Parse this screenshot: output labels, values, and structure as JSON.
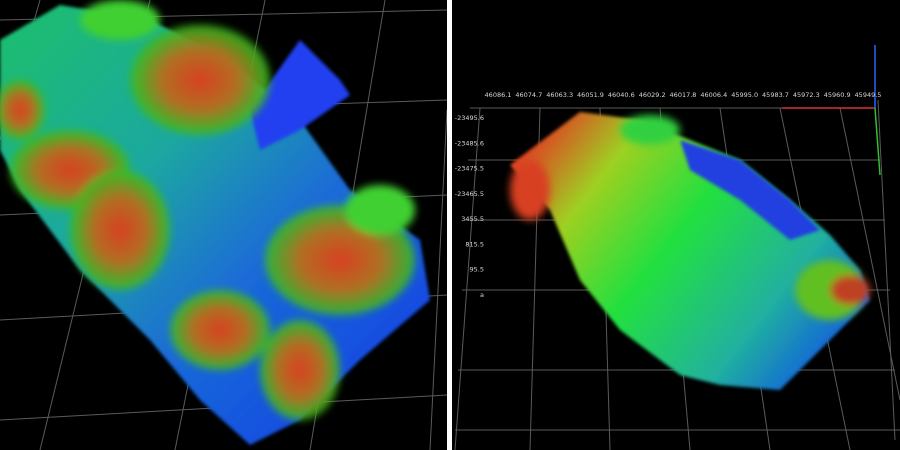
{
  "right_view": {
    "x_axis_labels": [
      "46086.1",
      "46074.7",
      "46063.3",
      "46051.9",
      "46040.6",
      "46029.2",
      "46017.8",
      "46006.4",
      "45995.0",
      "45983.7",
      "45972.3",
      "45960.9",
      "45949.5"
    ],
    "y_axis_labels": [
      "-23495.6",
      "-23485.6",
      "-23475.5",
      "-23465.5",
      "3455.5",
      "815.5",
      "95.5",
      "a"
    ]
  }
}
